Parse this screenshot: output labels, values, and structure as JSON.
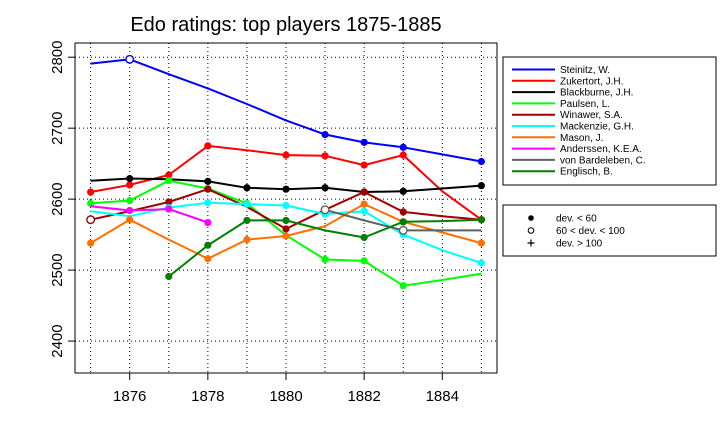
{
  "chart_data": {
    "type": "line",
    "title": "Edo ratings: top players 1875-1885",
    "xlabel": "",
    "ylabel": "",
    "xlim": [
      1874.6,
      1885.4
    ],
    "ylim": [
      2355,
      2820
    ],
    "x_ticks": [
      1876,
      1878,
      1880,
      1882,
      1884
    ],
    "y_ticks": [
      2400,
      2500,
      2600,
      2700,
      2800
    ],
    "grid": true,
    "legend_position": "right",
    "series": [
      {
        "name": "Steinitz, W.",
        "color": "#0000ff",
        "x": [
          1875,
          1876,
          1877,
          1878,
          1879,
          1880,
          1881,
          1882,
          1883,
          1884,
          1885
        ],
        "y": [
          2791,
          2797,
          2776,
          2756,
          2734,
          2711,
          2691,
          2680,
          2673,
          2663,
          2653
        ],
        "markers": [
          "none",
          "open",
          "none",
          "none",
          "none",
          "none",
          "filled",
          "filled",
          "filled",
          "none",
          "filled"
        ]
      },
      {
        "name": "Zukertort, J.H.",
        "color": "#ff0000",
        "x": [
          1875,
          1876,
          1877,
          1878,
          1879,
          1880,
          1881,
          1882,
          1883,
          1884,
          1885
        ],
        "y": [
          2610,
          2620,
          2634,
          2675,
          2669,
          2662,
          2661,
          2648,
          2662,
          2611,
          2571
        ],
        "markers": [
          "filled",
          "filled",
          "filled",
          "filled",
          "none",
          "filled",
          "filled",
          "filled",
          "filled",
          "none",
          "filled"
        ]
      },
      {
        "name": "Blackburne, J.H.",
        "color": "#000000",
        "x": [
          1875,
          1876,
          1877,
          1878,
          1879,
          1880,
          1881,
          1882,
          1883,
          1884,
          1885
        ],
        "y": [
          2626,
          2629,
          2628,
          2625,
          2616,
          2614,
          2616,
          2610,
          2611,
          2615,
          2619
        ],
        "markers": [
          "none",
          "filled",
          "none",
          "filled",
          "filled",
          "filled",
          "filled",
          "filled",
          "filled",
          "none",
          "filled"
        ]
      },
      {
        "name": "Paulsen, L.",
        "color": "#00ff00",
        "x": [
          1875,
          1876,
          1877,
          1878,
          1879,
          1880,
          1881,
          1882,
          1883,
          1884,
          1885
        ],
        "y": [
          2594,
          2598,
          2626,
          2615,
          2594,
          2549,
          2515,
          2513,
          2478,
          2486,
          2495
        ],
        "markers": [
          "filled",
          "filled",
          "filled",
          "filled",
          "filled",
          "none",
          "filled",
          "filled",
          "filled",
          "none",
          "none"
        ]
      },
      {
        "name": "Winawer, S.A.",
        "color": "#a00000",
        "x": [
          1875,
          1876,
          1877,
          1878,
          1879,
          1880,
          1881,
          1882,
          1883,
          1884,
          1885
        ],
        "y": [
          2571,
          2583,
          2596,
          2614,
          2589,
          2558,
          2585,
          2610,
          2582,
          2576,
          2571
        ],
        "markers": [
          "open",
          "none",
          "filled",
          "filled",
          "none",
          "filled",
          "none",
          "filled",
          "filled",
          "none",
          "filled"
        ]
      },
      {
        "name": "Mackenzie, G.H.",
        "color": "#00ffff",
        "x": [
          1875,
          1876,
          1877,
          1878,
          1879,
          1880,
          1881,
          1882,
          1883,
          1884,
          1885
        ],
        "y": [
          2583,
          2576,
          2588,
          2595,
          2593,
          2591,
          2579,
          2583,
          2550,
          2528,
          2510
        ],
        "markers": [
          "none",
          "none",
          "filled",
          "filled",
          "filled",
          "filled",
          "filled",
          "filled",
          "filled",
          "none",
          "filled"
        ]
      },
      {
        "name": "Mason, J.",
        "color": "#ff7000",
        "x": [
          1875,
          1876,
          1877,
          1878,
          1879,
          1880,
          1881,
          1882,
          1883,
          1884,
          1885
        ],
        "y": [
          2538,
          2571,
          2543,
          2516,
          2543,
          2548,
          2562,
          2593,
          2568,
          2553,
          2538
        ],
        "markers": [
          "filled",
          "filled",
          "none",
          "filled",
          "filled",
          "filled",
          "none",
          "filled",
          "filled",
          "none",
          "filled"
        ]
      },
      {
        "name": "Anderssen, K.E.A.",
        "color": "#ff00ff",
        "x": [
          1875,
          1876,
          1877,
          1878
        ],
        "y": [
          2590,
          2584,
          2586,
          2567
        ],
        "markers": [
          "none",
          "filled",
          "filled",
          "filled"
        ]
      },
      {
        "name": "von Bardeleben, C.",
        "color": "#606060",
        "x": [
          1881,
          1882,
          1883,
          1884,
          1885
        ],
        "y": [
          2585,
          2570,
          2556,
          2556,
          2556
        ],
        "markers": [
          "open",
          "none",
          "open",
          "none",
          "none"
        ]
      },
      {
        "name": "Englisch, B.",
        "color": "#008000",
        "x": [
          1877,
          1878,
          1879,
          1880,
          1881,
          1882,
          1883,
          1884,
          1885
        ],
        "y": [
          2491,
          2535,
          2570,
          2570,
          2556,
          2546,
          2568,
          2569,
          2571
        ],
        "markers": [
          "filled",
          "filled",
          "filled",
          "filled",
          "none",
          "filled",
          "filled",
          "none",
          "filled"
        ]
      }
    ],
    "marker_legend": [
      {
        "symbol": "filled",
        "label": "dev. < 60"
      },
      {
        "symbol": "open",
        "label": "60 < dev. < 100"
      },
      {
        "symbol": "plus",
        "label": "dev. > 100"
      }
    ]
  }
}
